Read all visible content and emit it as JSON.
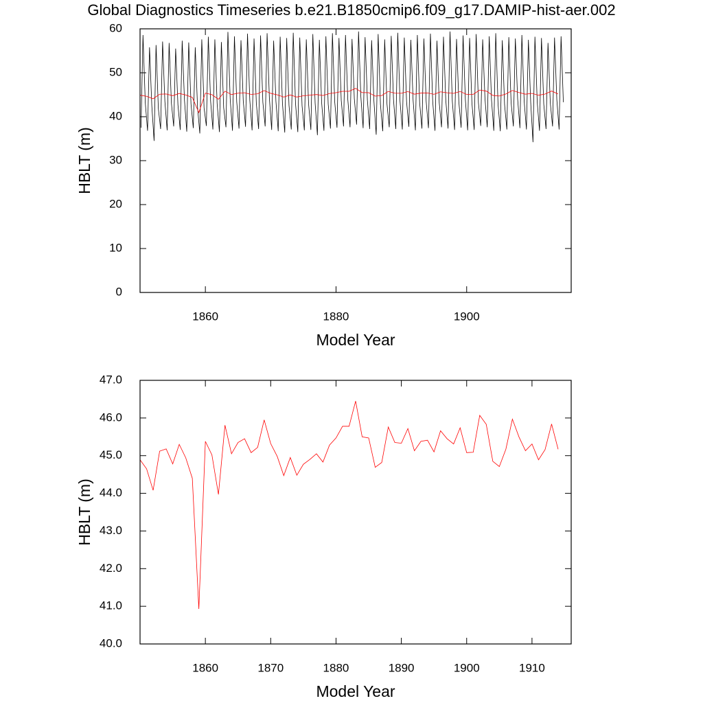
{
  "chart_data": [
    {
      "type": "line",
      "title": "Global Diagnostics Timeseries b.e21.B1850cmip6.f09_g17.DAMIP-hist-aer.002",
      "ylabel": "HBLT (m)",
      "xlabel": "Model Year",
      "xlim": [
        1850,
        1916
      ],
      "ylim": [
        0,
        60
      ],
      "xticks": [
        1860,
        1880,
        1900
      ],
      "yticks": [
        0,
        10,
        20,
        30,
        40,
        50,
        60
      ],
      "series": [
        {
          "color": "#000000",
          "x": [
            1850.15,
            1850.45,
            1850.8,
            1851.15,
            1851.45,
            1851.8,
            1852.15,
            1852.45,
            1852.8,
            1853.15,
            1853.45,
            1853.8,
            1854.15,
            1854.45,
            1854.8,
            1855.15,
            1855.45,
            1855.8,
            1856.15,
            1856.45,
            1856.8,
            1857.15,
            1857.45,
            1857.8,
            1858.15,
            1858.45,
            1858.8,
            1859.15,
            1859.45,
            1859.8,
            1860.15,
            1860.45,
            1860.8,
            1861.15,
            1861.45,
            1861.8,
            1862.15,
            1862.45,
            1862.8,
            1863.15,
            1863.45,
            1863.8,
            1864.15,
            1864.45,
            1864.8,
            1865.15,
            1865.45,
            1865.8,
            1866.15,
            1866.45,
            1866.8,
            1867.15,
            1867.45,
            1867.8,
            1868.15,
            1868.45,
            1868.8,
            1869.15,
            1869.45,
            1869.8,
            1870.15,
            1870.45,
            1870.8,
            1871.15,
            1871.45,
            1871.8,
            1872.15,
            1872.45,
            1872.8,
            1873.15,
            1873.45,
            1873.8,
            1874.15,
            1874.45,
            1874.8,
            1875.15,
            1875.45,
            1875.8,
            1876.15,
            1876.45,
            1876.8,
            1877.15,
            1877.45,
            1877.8,
            1878.15,
            1878.45,
            1878.8,
            1879.15,
            1879.45,
            1879.8,
            1880.15,
            1880.45,
            1880.8,
            1881.15,
            1881.45,
            1881.8,
            1882.15,
            1882.45,
            1882.8,
            1883.15,
            1883.45,
            1883.8,
            1884.15,
            1884.45,
            1884.8,
            1885.15,
            1885.45,
            1885.8,
            1886.15,
            1886.45,
            1886.8,
            1887.15,
            1887.45,
            1887.8,
            1888.15,
            1888.45,
            1888.8,
            1889.15,
            1889.45,
            1889.8,
            1890.15,
            1890.45,
            1890.8,
            1891.15,
            1891.45,
            1891.8,
            1892.15,
            1892.45,
            1892.8,
            1893.15,
            1893.45,
            1893.8,
            1894.15,
            1894.45,
            1894.8,
            1895.15,
            1895.45,
            1895.8,
            1896.15,
            1896.45,
            1896.8,
            1897.15,
            1897.45,
            1897.8,
            1898.15,
            1898.45,
            1898.8,
            1899.15,
            1899.45,
            1899.8,
            1900.15,
            1900.45,
            1900.8,
            1901.15,
            1901.45,
            1901.8,
            1902.15,
            1902.45,
            1902.8,
            1903.15,
            1903.45,
            1903.8,
            1904.15,
            1904.45,
            1904.8,
            1905.15,
            1905.45,
            1905.8,
            1906.15,
            1906.45,
            1906.8,
            1907.15,
            1907.45,
            1907.8,
            1908.15,
            1908.45,
            1908.8,
            1909.15,
            1909.45,
            1909.8,
            1910.15,
            1910.45,
            1910.8,
            1911.15,
            1911.45,
            1911.8,
            1912.15,
            1912.45,
            1912.8,
            1913.15,
            1913.45,
            1913.8,
            1914.15,
            1914.45,
            1914.8
          ],
          "values": [
            37.5,
            58.6,
            43.2,
            36.8,
            55.8,
            42.5,
            34.5,
            56.3,
            41.9,
            37.2,
            57.1,
            43.5,
            36.9,
            56.8,
            43.1,
            37.8,
            55.5,
            42.7,
            37.0,
            57.3,
            43.8,
            36.6,
            56.9,
            42.9,
            37.4,
            55.8,
            42.2,
            36.2,
            57.6,
            42.0,
            37.9,
            58.2,
            43.6,
            37.1,
            57.6,
            43.0,
            36.5,
            57.0,
            42.1,
            37.6,
            59.3,
            44.0,
            36.8,
            58.3,
            43.4,
            37.3,
            57.4,
            43.6,
            37.7,
            58.9,
            43.8,
            36.9,
            57.8,
            43.1,
            37.2,
            58.5,
            43.3,
            37.8,
            59.0,
            44.2,
            37.0,
            57.3,
            43.5,
            36.7,
            58.2,
            43.0,
            36.4,
            57.9,
            42.6,
            37.1,
            59.1,
            43.0,
            36.5,
            58.0,
            42.5,
            36.9,
            57.6,
            42.9,
            37.0,
            58.8,
            43.1,
            35.8,
            57.5,
            43.2,
            36.8,
            58.3,
            42.9,
            37.3,
            59.0,
            43.4,
            37.5,
            57.9,
            43.7,
            37.8,
            58.6,
            44.0,
            37.6,
            57.7,
            44.1,
            38.2,
            59.4,
            44.6,
            37.4,
            58.1,
            43.8,
            37.2,
            57.4,
            43.6,
            35.9,
            58.8,
            42.8,
            36.7,
            57.6,
            42.9,
            37.6,
            58.4,
            43.9,
            37.2,
            59.1,
            43.5,
            37.1,
            58.0,
            43.4,
            37.7,
            57.5,
            43.8,
            36.9,
            58.6,
            43.2,
            37.3,
            57.8,
            43.5,
            37.4,
            58.9,
            43.5,
            36.8,
            57.3,
            43.2,
            37.6,
            58.2,
            43.8,
            37.3,
            59.4,
            43.6,
            37.0,
            57.7,
            43.4,
            37.5,
            58.5,
            43.9,
            36.9,
            57.9,
            43.2,
            37.0,
            58.8,
            43.2,
            37.9,
            57.6,
            44.2,
            37.6,
            58.3,
            43.9,
            36.8,
            59.0,
            42.9,
            36.7,
            57.4,
            42.8,
            37.1,
            58.1,
            43.3,
            37.8,
            57.8,
            44.1,
            37.4,
            58.6,
            43.6,
            37.1,
            57.5,
            43.3,
            34.2,
            58.2,
            43.4,
            36.8,
            57.9,
            42.9,
            37.2,
            56.8,
            43.2,
            37.8,
            58.0,
            43.9,
            37.1,
            58.3,
            43.3
          ]
        },
        {
          "color": "#ff0000",
          "x": [
            1850,
            1851,
            1852,
            1853,
            1854,
            1855,
            1856,
            1857,
            1858,
            1859,
            1860,
            1861,
            1862,
            1863,
            1864,
            1865,
            1866,
            1867,
            1868,
            1869,
            1870,
            1871,
            1872,
            1873,
            1874,
            1875,
            1876,
            1877,
            1878,
            1879,
            1880,
            1881,
            1882,
            1883,
            1884,
            1885,
            1886,
            1887,
            1888,
            1889,
            1890,
            1891,
            1892,
            1893,
            1894,
            1895,
            1896,
            1897,
            1898,
            1899,
            1900,
            1901,
            1902,
            1903,
            1904,
            1905,
            1906,
            1907,
            1908,
            1909,
            1910,
            1911,
            1912,
            1913,
            1914
          ],
          "values": [
            44.89,
            44.65,
            44.08,
            45.12,
            45.18,
            44.78,
            45.3,
            44.94,
            44.4,
            40.93,
            45.38,
            45.02,
            43.97,
            45.81,
            45.05,
            45.35,
            45.45,
            45.08,
            45.22,
            45.95,
            45.32,
            44.98,
            44.47,
            44.95,
            44.48,
            44.77,
            44.9,
            45.05,
            44.83,
            45.28,
            45.47,
            45.78,
            45.78,
            46.45,
            45.5,
            45.47,
            44.69,
            44.82,
            45.76,
            45.35,
            45.33,
            45.72,
            45.13,
            45.38,
            45.41,
            45.1,
            45.66,
            45.45,
            45.31,
            45.74,
            45.08,
            45.09,
            46.07,
            45.83,
            44.85,
            44.71,
            45.17,
            45.97,
            45.5,
            45.13,
            45.31,
            44.89,
            45.16,
            45.84,
            45.17
          ]
        }
      ]
    },
    {
      "type": "line",
      "ylabel": "HBLT (m)",
      "xlabel": "Model Year",
      "xlim": [
        1850,
        1916
      ],
      "ylim": [
        40,
        47
      ],
      "xticks": [
        1860,
        1870,
        1880,
        1890,
        1900,
        1910
      ],
      "yticks": [
        {
          "value": 40,
          "label": "40.0"
        },
        {
          "value": 41,
          "label": "41.0"
        },
        {
          "value": 42,
          "label": "42.0"
        },
        {
          "value": 43,
          "label": "43.0"
        },
        {
          "value": 44,
          "label": "44.0"
        },
        {
          "value": 45,
          "label": "45.0"
        },
        {
          "value": 46,
          "label": "46.0"
        },
        {
          "value": 47,
          "label": "47.0"
        }
      ],
      "series": [
        {
          "color": "#ff0000",
          "x": [
            1850,
            1851,
            1852,
            1853,
            1854,
            1855,
            1856,
            1857,
            1858,
            1859,
            1860,
            1861,
            1862,
            1863,
            1864,
            1865,
            1866,
            1867,
            1868,
            1869,
            1870,
            1871,
            1872,
            1873,
            1874,
            1875,
            1876,
            1877,
            1878,
            1879,
            1880,
            1881,
            1882,
            1883,
            1884,
            1885,
            1886,
            1887,
            1888,
            1889,
            1890,
            1891,
            1892,
            1893,
            1894,
            1895,
            1896,
            1897,
            1898,
            1899,
            1900,
            1901,
            1902,
            1903,
            1904,
            1905,
            1906,
            1907,
            1908,
            1909,
            1910,
            1911,
            1912,
            1913,
            1914
          ],
          "values": [
            44.89,
            44.65,
            44.08,
            45.12,
            45.18,
            44.78,
            45.3,
            44.94,
            44.4,
            40.93,
            45.38,
            45.02,
            43.97,
            45.81,
            45.05,
            45.35,
            45.45,
            45.08,
            45.22,
            45.95,
            45.32,
            44.98,
            44.47,
            44.95,
            44.48,
            44.77,
            44.9,
            45.05,
            44.83,
            45.28,
            45.47,
            45.78,
            45.78,
            46.45,
            45.5,
            45.47,
            44.69,
            44.82,
            45.76,
            45.35,
            45.33,
            45.72,
            45.13,
            45.38,
            45.41,
            45.1,
            45.66,
            45.45,
            45.31,
            45.74,
            45.08,
            45.09,
            46.07,
            45.83,
            44.85,
            44.71,
            45.17,
            45.97,
            45.5,
            45.13,
            45.31,
            44.89,
            45.16,
            45.84,
            45.17
          ]
        }
      ]
    }
  ]
}
